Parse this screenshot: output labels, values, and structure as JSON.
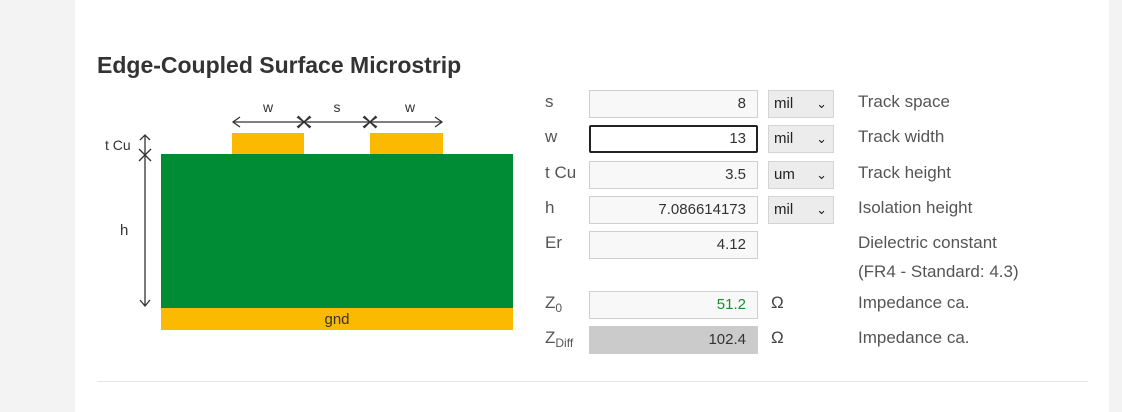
{
  "title": "Edge-Coupled Surface Microstrip",
  "diagram": {
    "label_w1": "w",
    "label_s": "s",
    "label_w2": "w",
    "label_tcu": "t Cu",
    "label_h": "h",
    "label_gnd": "gnd",
    "colors": {
      "copper": "#fbb900",
      "substrate": "#008c34"
    }
  },
  "rows": {
    "s": {
      "label": "s",
      "value": "8",
      "unit": "mil",
      "description": "Track space"
    },
    "w": {
      "label": "w",
      "value": "13",
      "unit": "mil",
      "description": "Track width"
    },
    "tcu": {
      "label": "t Cu",
      "value": "3.5",
      "unit": "um",
      "description": "Track height"
    },
    "h": {
      "label": "h",
      "value": "7.086614173",
      "unit": "mil",
      "description": "Isolation height"
    },
    "er": {
      "label": "Er",
      "value": "4.12",
      "description": "Dielectric constant",
      "description2": "(FR4 - Standard: 4.3)"
    },
    "z0": {
      "label_main": "Z",
      "label_sub": "0",
      "value": "51.2",
      "unit": "Ω",
      "description": "Impedance ca."
    },
    "zdiff": {
      "label_main": "Z",
      "label_sub": "Diff",
      "value": "102.4",
      "unit": "Ω",
      "description": "Impedance ca."
    }
  }
}
